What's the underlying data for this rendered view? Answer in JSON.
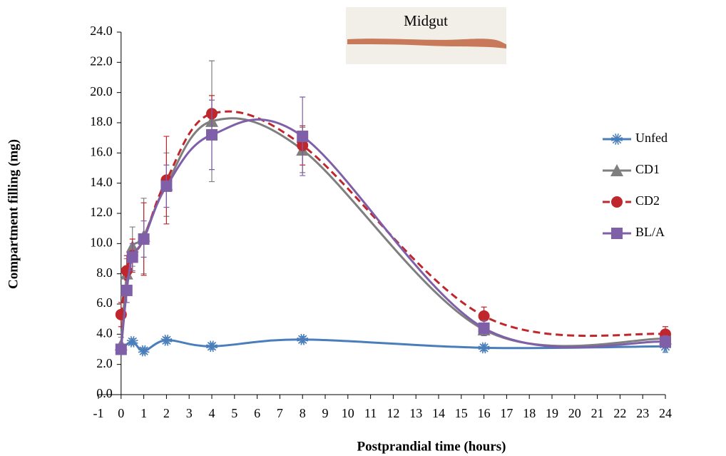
{
  "chart_data": {
    "type": "line",
    "inset_label": "Midgut",
    "xlabel": "Postprandial time (hours)",
    "ylabel": "Compartment filling (mg)",
    "xlim": [
      -1,
      24
    ],
    "xticks": [
      -1,
      0,
      1,
      2,
      3,
      4,
      5,
      6,
      7,
      8,
      9,
      10,
      11,
      12,
      13,
      14,
      15,
      16,
      17,
      18,
      19,
      20,
      21,
      22,
      23,
      24
    ],
    "ylim": [
      0,
      24
    ],
    "yticks": [
      {
        "value": 0,
        "label": "0.0"
      },
      {
        "value": 2,
        "label": "2.0"
      },
      {
        "value": 4,
        "label": "4.0"
      },
      {
        "value": 6,
        "label": "6.0"
      },
      {
        "value": 8,
        "label": "8.0"
      },
      {
        "value": 10,
        "label": "10.0"
      },
      {
        "value": 12,
        "label": "12.0"
      },
      {
        "value": 14,
        "label": "14.0"
      },
      {
        "value": 16,
        "label": "16.0"
      },
      {
        "value": 18,
        "label": "18.0"
      },
      {
        "value": 20,
        "label": "20.0"
      },
      {
        "value": 22,
        "label": "22.0"
      },
      {
        "value": 24,
        "label": "24.0"
      }
    ],
    "legend": "right",
    "series": [
      {
        "name": "Unfed",
        "color": "#4a7ebb",
        "marker": "star",
        "dash": false,
        "x": [
          0,
          0.5,
          1,
          2,
          4,
          8,
          16,
          24
        ],
        "values": [
          3.0,
          3.5,
          2.9,
          3.6,
          3.2,
          3.65,
          3.1,
          3.2
        ],
        "errors": [
          0.3,
          0.2,
          0.2,
          0.2,
          0.2,
          0.2,
          0.2,
          0.4
        ]
      },
      {
        "name": "CD1",
        "color": "#7f7f7f",
        "marker": "triangle",
        "dash": false,
        "x": [
          0,
          0.25,
          0.5,
          1,
          2,
          4,
          8,
          16,
          24
        ],
        "values": [
          3.3,
          8.0,
          9.8,
          10.5,
          13.9,
          18.1,
          16.2,
          4.3,
          3.7
        ],
        "errors": [
          0.5,
          1.0,
          1.3,
          2.5,
          2.1,
          4.0,
          1.5,
          0.4,
          0.4
        ]
      },
      {
        "name": "CD2",
        "color": "#c0272d",
        "marker": "circle",
        "dash": true,
        "x": [
          0,
          0.25,
          0.5,
          1,
          2,
          4,
          8,
          16,
          24
        ],
        "values": [
          5.3,
          8.2,
          9.2,
          10.3,
          14.2,
          18.6,
          16.5,
          5.2,
          4.0
        ],
        "errors": [
          0.8,
          1.0,
          1.1,
          2.4,
          2.9,
          1.2,
          1.3,
          0.6,
          0.5
        ]
      },
      {
        "name": "BL/A",
        "color": "#7f5fa8",
        "marker": "square",
        "dash": false,
        "x": [
          0,
          0.25,
          0.5,
          1,
          2,
          4,
          8,
          16,
          24
        ],
        "values": [
          3.0,
          6.9,
          9.1,
          10.3,
          13.8,
          17.2,
          17.1,
          4.4,
          3.5
        ],
        "errors": [
          0.3,
          0.8,
          0.9,
          1.2,
          1.4,
          2.3,
          2.6,
          0.5,
          0.4
        ]
      }
    ]
  }
}
